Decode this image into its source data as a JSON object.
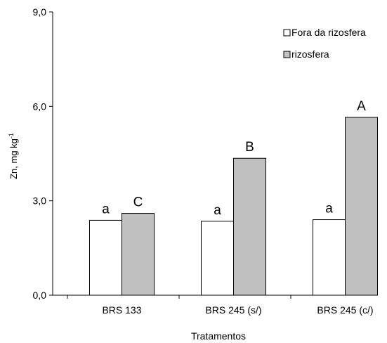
{
  "chart_data": {
    "type": "bar",
    "categories": [
      "BRS 133",
      "BRS 245 (s/)",
      "BRS 245 (c/)"
    ],
    "series": [
      {
        "name": "Fora da rizosfera",
        "values": [
          2.38,
          2.35,
          2.4
        ],
        "labels": [
          "a",
          "a",
          "a"
        ],
        "color": "#ffffff"
      },
      {
        "name": "rizosfera",
        "values": [
          2.6,
          4.35,
          5.65
        ],
        "labels": [
          "C",
          "B",
          "A"
        ],
        "color": "#c0c0c0"
      }
    ],
    "yticks": [
      "0,0",
      "3,0",
      "6,0",
      "9,0"
    ],
    "ylim": [
      0,
      9
    ],
    "xlabel": "Tratamentos",
    "ylabel": "Zn, mg kg",
    "ylabel_sup": "-1",
    "legend_position": "top-right",
    "grid": false
  }
}
